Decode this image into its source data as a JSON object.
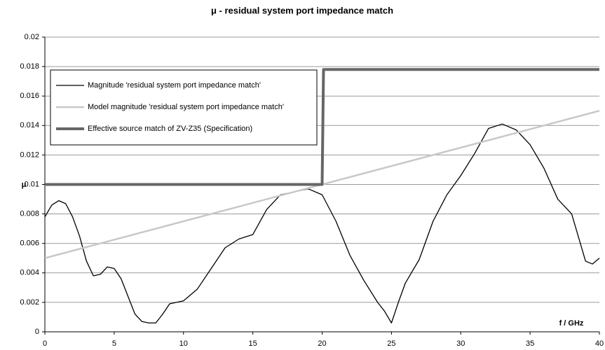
{
  "chart_data": {
    "type": "line",
    "title": "μ - residual system port impedance match",
    "y_label": "μ",
    "x_label": "f / GHz",
    "xlim": [
      0,
      40
    ],
    "xticks": [
      0,
      5,
      10,
      15,
      20,
      25,
      30,
      35,
      40
    ],
    "ylim": [
      0,
      0.02
    ],
    "yticks": [
      0,
      0.002,
      0.004,
      0.006,
      0.008,
      0.01,
      0.012,
      0.014,
      0.016,
      0.018,
      0.02
    ],
    "grid": true,
    "legend": "top-left",
    "series": [
      {
        "name": "Magnitude 'residual system port impedance match'",
        "color": "#000000",
        "line_width": 1.3,
        "x": [
          0,
          0.5,
          1,
          1.5,
          2,
          2.5,
          3,
          3.5,
          4,
          4.5,
          5,
          5.5,
          6,
          6.5,
          7,
          7.5,
          8,
          8.5,
          9,
          10,
          11,
          12,
          13,
          14,
          15,
          16,
          17,
          18,
          19,
          20,
          21,
          22,
          23,
          24,
          24.5,
          25,
          25.5,
          26,
          27,
          28,
          29,
          30,
          31,
          32,
          33,
          34,
          35,
          36,
          37,
          38,
          39,
          39.5,
          40
        ],
        "values": [
          0.0078,
          0.0086,
          0.0089,
          0.0087,
          0.0078,
          0.0065,
          0.0048,
          0.0038,
          0.0039,
          0.0044,
          0.0043,
          0.0036,
          0.0024,
          0.0012,
          0.0007,
          0.0006,
          0.0006,
          0.0012,
          0.0019,
          0.0021,
          0.0029,
          0.0043,
          0.0057,
          0.0063,
          0.0066,
          0.0083,
          0.0093,
          0.0095,
          0.0097,
          0.0093,
          0.0075,
          0.0052,
          0.0035,
          0.002,
          0.0014,
          0.0006,
          0.002,
          0.0033,
          0.0049,
          0.0075,
          0.0093,
          0.0106,
          0.0121,
          0.0138,
          0.0141,
          0.0137,
          0.0127,
          0.0111,
          0.009,
          0.008,
          0.0048,
          0.0046,
          0.005
        ]
      },
      {
        "name": "Model magnitude 'residual system port impedance match'",
        "color": "#c8c8c8",
        "line_width": 2.5,
        "x": [
          0,
          40
        ],
        "values": [
          0.005,
          0.015
        ]
      },
      {
        "name": "Effective source match of ZV-Z35 (Specification)",
        "color": "#666666",
        "line_width": 4,
        "x": [
          0,
          20,
          20.1,
          40
        ],
        "values": [
          0.01,
          0.01,
          0.0178,
          0.0178
        ]
      }
    ]
  }
}
